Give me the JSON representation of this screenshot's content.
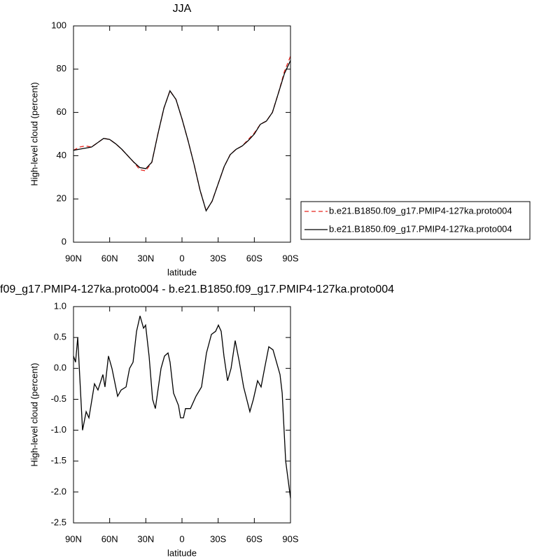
{
  "chart_data": [
    {
      "type": "line",
      "title": "JJA",
      "xlabel": "latitude",
      "ylabel": "High-level cloud (percent)",
      "x": [
        90,
        85,
        80,
        75,
        70,
        65,
        60,
        55,
        50,
        45,
        40,
        35,
        30,
        25,
        20,
        15,
        10,
        5,
        0,
        -5,
        -10,
        -15,
        -20,
        -25,
        -30,
        -35,
        -40,
        -45,
        -50,
        -55,
        -60,
        -65,
        -70,
        -75,
        -80,
        -85,
        -90
      ],
      "series": [
        {
          "name": "b.e21.B1850.f09_g17.PMIP4-127ka.proto004",
          "color": "#e8261f",
          "dash": true,
          "values": [
            42.5,
            44,
            44.5,
            44,
            46,
            48,
            47.5,
            45.5,
            43,
            40,
            37,
            33.5,
            33,
            37,
            50,
            62,
            70,
            66,
            57,
            47,
            36,
            24,
            14.5,
            19,
            27,
            35,
            40.5,
            43,
            44.5,
            47.5,
            50.5,
            54.5,
            56,
            60,
            69,
            79,
            86
          ]
        },
        {
          "name": "b.e21.B1850.f09_g17.PMIP4-127ka.proto004",
          "color": "#000000",
          "dash": false,
          "values": [
            42.5,
            43,
            43.5,
            44,
            46,
            48,
            47.5,
            45.5,
            43,
            40,
            37,
            34.5,
            34,
            37,
            50,
            62,
            70,
            66,
            57,
            47,
            36,
            24,
            14.5,
            19,
            27,
            35,
            40.5,
            43,
            44.5,
            47,
            50,
            54.5,
            56,
            60,
            69,
            78,
            84
          ]
        }
      ],
      "xlim": [
        90,
        -90
      ],
      "xticks": [
        {
          "value": 90,
          "label": "90N"
        },
        {
          "value": 60,
          "label": "60N"
        },
        {
          "value": 30,
          "label": "30N"
        },
        0,
        {
          "value": -30,
          "label": "30S"
        },
        {
          "value": -60,
          "label": "60S"
        },
        {
          "value": -90,
          "label": "90S"
        }
      ],
      "ylim": [
        0,
        100
      ],
      "yticks": [
        0,
        20,
        40,
        60,
        80,
        100
      ],
      "legend": "right"
    },
    {
      "type": "line",
      "title": "f09_g17.PMIP4-127ka.proto004 - b.e21.B1850.f09_g17.PMIP4-127ka.proto004",
      "xlabel": "latitude",
      "ylabel": "High-level cloud (percent)",
      "x": [
        90,
        88.3,
        86.5,
        82.5,
        79.5,
        77.2,
        72.6,
        69.7,
        65.6,
        63.9,
        61,
        58.1,
        53.4,
        50.5,
        46.4,
        43.5,
        40.6,
        37.7,
        34.8,
        31.9,
        30.2,
        27.3,
        24.4,
        22.1,
        17.4,
        14.5,
        11.6,
        9.9,
        7,
        2.9,
        1.2,
        -1.2,
        -2.9,
        -7,
        -11.6,
        -16.2,
        -20.3,
        -24.4,
        -27.9,
        -30.2,
        -32.5,
        -34.8,
        -37.8,
        -40.7,
        -44.1,
        -47.6,
        -51.1,
        -56.3,
        -59.2,
        -62.7,
        -65.6,
        -68.5,
        -72,
        -75.5,
        -78.4,
        -81.3,
        -83.1,
        -86,
        -90
      ],
      "series": [
        {
          "color": "#000000",
          "dash": false,
          "values": [
            0.2,
            0.1,
            0.5,
            -1.0,
            -0.7,
            -0.8,
            -0.25,
            -0.35,
            -0.1,
            -0.3,
            0.2,
            0,
            -0.45,
            -0.35,
            -0.3,
            0,
            0.1,
            0.6,
            0.85,
            0.65,
            0.7,
            0.2,
            -0.5,
            -0.65,
            0,
            0.2,
            0.25,
            0.1,
            -0.4,
            -0.6,
            -0.8,
            -0.8,
            -0.65,
            -0.65,
            -0.45,
            -0.3,
            0.25,
            0.55,
            0.6,
            0.7,
            0.6,
            0.2,
            -0.2,
            0,
            0.45,
            0.1,
            -0.3,
            -0.7,
            -0.5,
            -0.2,
            -0.3,
            0,
            0.35,
            0.3,
            0.1,
            -0.1,
            -0.4,
            -1.5,
            -2.1
          ]
        }
      ],
      "xlim": [
        90,
        -90
      ],
      "xticks": [
        {
          "value": 90,
          "label": "90N"
        },
        {
          "value": 60,
          "label": "60N"
        },
        {
          "value": 30,
          "label": "30N"
        },
        0,
        {
          "value": -30,
          "label": "30S"
        },
        {
          "value": -60,
          "label": "60S"
        },
        {
          "value": -90,
          "label": "90S"
        }
      ],
      "ylim": [
        -2.5,
        1.0
      ],
      "yticks": [
        -2.5,
        {
          "value": -2,
          "label": "-2.0"
        },
        -1.5,
        {
          "value": -1,
          "label": "-1.0"
        },
        -0.5,
        {
          "value": 0,
          "label": "0.0"
        },
        0.5,
        {
          "value": 1,
          "label": "1.0"
        }
      ]
    }
  ]
}
